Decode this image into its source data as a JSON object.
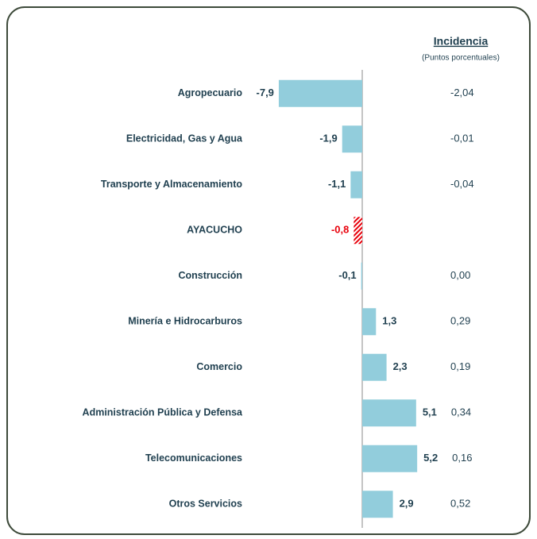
{
  "chart_data": {
    "type": "barh",
    "header": "Incidencia",
    "subheader": "(Puntos porcentuales)",
    "categories": [
      "Agropecuario",
      "Electricidad, Gas y Agua",
      "Transporte y Almacenamiento",
      "AYACUCHO",
      "Construcción",
      "Minería e Hidrocarburos",
      "Comercio",
      "Administración Pública y Defensa",
      "Telecomunicaciones",
      "Otros Servicios"
    ],
    "values": [
      -7.9,
      -1.9,
      -1.1,
      -0.8,
      -0.1,
      1.3,
      2.3,
      5.1,
      5.2,
      2.9
    ],
    "value_labels": [
      "-7,9",
      "-1,9",
      "-1,1",
      "-0,8",
      "-0,1",
      "1,3",
      "2,3",
      "5,1",
      "5,2",
      "2,9"
    ],
    "colors": [
      "#92cddc",
      "#92cddc",
      "#92cddc",
      "#e8000b",
      "#92cddc",
      "#92cddc",
      "#92cddc",
      "#92cddc",
      "#92cddc",
      "#92cddc"
    ],
    "incidence": [
      -2.04,
      -0.01,
      -0.04,
      null,
      0,
      0.29,
      0.19,
      0.34,
      0.16,
      0.52
    ],
    "incidence_labels": [
      "-2,04",
      "-0,01",
      "-0,04",
      null,
      "0,00",
      "0,29",
      "0,19",
      "0,34",
      "0,16",
      "0,52"
    ],
    "xlim": [
      -8.1,
      8.1
    ]
  }
}
